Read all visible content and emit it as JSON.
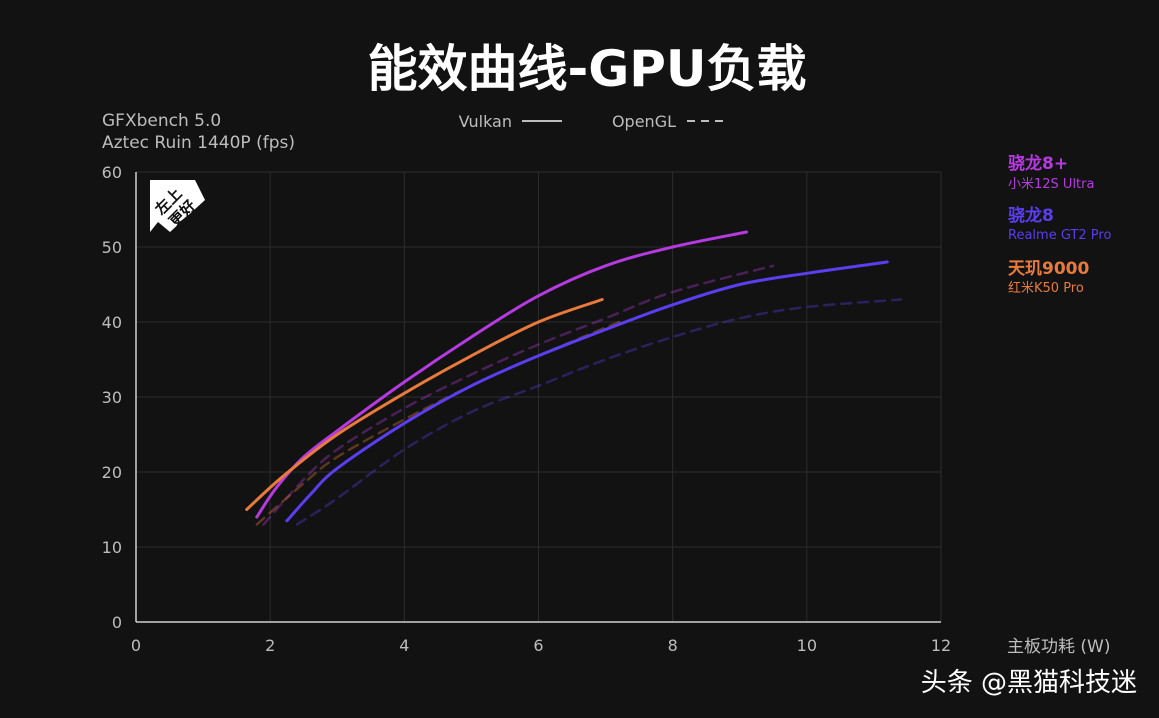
{
  "chart_data": {
    "type": "line",
    "title": "能效曲线-GPU负载",
    "ylabel_lines": [
      "GFXbench 5.0",
      "Aztec Ruin 1440P (fps)"
    ],
    "xlabel": "主板功耗 (W)",
    "xlim": [
      0,
      12
    ],
    "ylim": [
      0,
      60
    ],
    "xticks": [
      0,
      2,
      4,
      6,
      8,
      10,
      12
    ],
    "yticks": [
      0,
      10,
      20,
      30,
      40,
      50,
      60
    ],
    "grid": true,
    "badge": [
      "左上",
      "更好"
    ],
    "line_styles": [
      {
        "label": "Vulkan",
        "dash": "solid"
      },
      {
        "label": "OpenGL",
        "dash": "dashed"
      }
    ],
    "legend": [
      {
        "chip": "骁龙8+",
        "phone": "小米12S Ultra",
        "color": "#b53be0"
      },
      {
        "chip": "骁龙8",
        "phone": "Realme GT2 Pro",
        "color": "#5a3ef0"
      },
      {
        "chip": "天玑9000",
        "phone": "红米K50 Pro",
        "color": "#e87a3c"
      }
    ],
    "series": [
      {
        "api": "Vulkan",
        "color": "#b53be0",
        "x": [
          1.8,
          2.1,
          2.5,
          3.0,
          4.0,
          5.0,
          6.0,
          7.0,
          8.0,
          9.1
        ],
        "y": [
          14,
          18,
          22,
          25.5,
          32,
          38,
          43.5,
          47.5,
          50,
          52
        ]
      },
      {
        "api": "Vulkan",
        "color": "#5a3ef0",
        "x": [
          2.25,
          2.6,
          3.0,
          4.0,
          5.0,
          6.0,
          7.0,
          8.0,
          9.0,
          10.0,
          11.2
        ],
        "y": [
          13.5,
          17,
          20.5,
          26.5,
          31.5,
          35.5,
          39,
          42.3,
          45,
          46.5,
          48
        ]
      },
      {
        "api": "Vulkan",
        "color": "#e87a3c",
        "x": [
          1.65,
          2.2,
          3.0,
          4.0,
          5.0,
          6.0,
          6.95
        ],
        "y": [
          15,
          19.5,
          25,
          30.5,
          35.5,
          40,
          43
        ]
      },
      {
        "api": "OpenGL",
        "color": "#b53be0",
        "x": [
          1.9,
          2.5,
          3.0,
          4.0,
          5.0,
          6.0,
          7.0,
          8.0,
          9.5
        ],
        "y": [
          13,
          19,
          23,
          28.5,
          33,
          37,
          40.5,
          44,
          47.5
        ]
      },
      {
        "api": "OpenGL",
        "color": "#5a3ef0",
        "x": [
          2.4,
          3.0,
          4.0,
          5.0,
          6.0,
          7.0,
          8.0,
          9.0,
          10.0,
          11.4
        ],
        "y": [
          13,
          16.5,
          23,
          28,
          31.5,
          35,
          38,
          40.5,
          42,
          43
        ]
      },
      {
        "api": "OpenGL",
        "color": "#e87a3c",
        "x": [
          1.8,
          2.5,
          3.0,
          4.0,
          5.0,
          6.0,
          7.2
        ],
        "y": [
          13,
          18.5,
          22,
          27,
          31.5,
          35.5,
          40
        ]
      }
    ]
  },
  "watermark": "头条 @黑猫科技迷"
}
